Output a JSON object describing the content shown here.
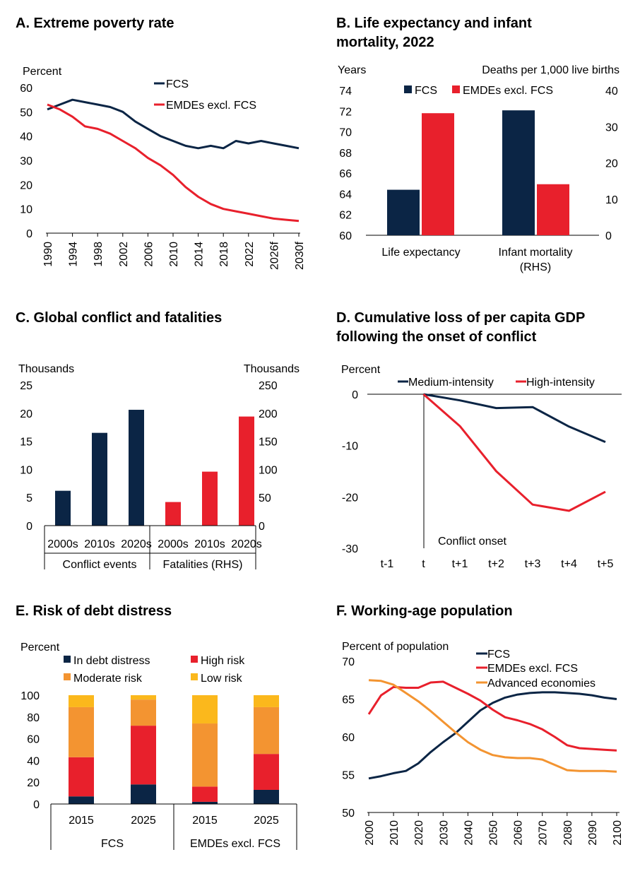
{
  "colors": {
    "navy": "#0b2545",
    "red": "#e8202c",
    "orange": "#f39431",
    "yellow": "#fbb81c",
    "axis": "#000000"
  },
  "panels": {
    "A": {
      "title": "A. Extreme poverty rate",
      "unit_label": "Percent",
      "chart_data": {
        "type": "line",
        "x": [
          1990,
          1992,
          1994,
          1996,
          1998,
          2000,
          2002,
          2004,
          2006,
          2008,
          2010,
          2012,
          2014,
          2016,
          2018,
          2020,
          2022,
          2024,
          2026,
          2028,
          2030
        ],
        "x_tick_labels": [
          "1990",
          "1994",
          "1998",
          "2002",
          "2006",
          "2010",
          "2014",
          "2018",
          "2022",
          "2026f",
          "2030f"
        ],
        "ylim": [
          0,
          60
        ],
        "y_ticks": [
          "0",
          "10",
          "20",
          "30",
          "40",
          "50",
          "60"
        ],
        "series": [
          {
            "name": "FCS",
            "color": "#0b2545",
            "values": [
              51,
              53,
              55,
              54,
              53,
              52,
              50,
              46,
              43,
              40,
              38,
              36,
              35,
              36,
              35,
              38,
              37,
              38,
              37,
              36,
              35
            ]
          },
          {
            "name": "EMDEs excl. FCS",
            "color": "#e8202c",
            "values": [
              53,
              51,
              48,
              44,
              43,
              41,
              38,
              35,
              31,
              28,
              24,
              19,
              15,
              12,
              10,
              9,
              8,
              7,
              6,
              5.5,
              5
            ]
          }
        ]
      }
    },
    "B": {
      "title_lines": [
        "B. Life expectancy and infant",
        "mortality, 2022"
      ],
      "left_unit": "Years",
      "right_unit": "Deaths per 1,000 live births",
      "chart_data": {
        "type": "bar",
        "categories": [
          [
            "Life expectancy"
          ],
          [
            "Infant mortality",
            "(RHS)"
          ]
        ],
        "ylim_left": [
          60,
          74
        ],
        "ylim_right": [
          0,
          40
        ],
        "y_ticks_left": [
          "60",
          "62",
          "64",
          "66",
          "68",
          "70",
          "72",
          "74"
        ],
        "y_ticks_right": [
          "0",
          "10",
          "20",
          "30",
          "40"
        ],
        "series": [
          {
            "name": "FCS",
            "color": "#0b2545",
            "values": [
              64.4,
              34.5
            ]
          },
          {
            "name": "EMDEs excl. FCS",
            "color": "#e8202c",
            "values": [
              71.8,
              14.1
            ]
          }
        ],
        "axis_for_category": [
          "left",
          "right"
        ]
      }
    },
    "C": {
      "title": "C. Global conflict and fatalities",
      "left_unit": "Thousands",
      "right_unit": "Thousands",
      "chart_data": {
        "type": "bar",
        "ylim_left": [
          0,
          25
        ],
        "ylim_right": [
          0,
          250
        ],
        "y_ticks_left": [
          "0",
          "5",
          "10",
          "15",
          "20",
          "25"
        ],
        "y_ticks_right": [
          "0",
          "50",
          "100",
          "150",
          "200",
          "250"
        ],
        "groups": [
          {
            "label": "Conflict events",
            "axis": "left",
            "color": "#0b2545",
            "categories": [
              "2000s",
              "2010s",
              "2020s"
            ],
            "values": [
              6.2,
              16.5,
              20.6
            ]
          },
          {
            "label": "Fatalities (RHS)",
            "axis": "right",
            "color": "#e8202c",
            "categories": [
              "2000s",
              "2010s",
              "2020s"
            ],
            "values": [
              42,
              96,
              194
            ]
          }
        ]
      }
    },
    "D": {
      "title_lines": [
        "D. Cumulative loss of per capita GDP",
        "following the onset of conflict"
      ],
      "unit_label": "Percent",
      "annotation": "Conflict onset",
      "chart_data": {
        "type": "line",
        "x": [
          "t-1",
          "t",
          "t+1",
          "t+2",
          "t+3",
          "t+4",
          "t+5"
        ],
        "ylim": [
          -30,
          0
        ],
        "y_ticks": [
          "0",
          "-10",
          "-20",
          "-30"
        ],
        "series": [
          {
            "name": "Medium-intensity",
            "color": "#0b2545",
            "values": [
              null,
              0,
              -1.2,
              -2.7,
              -2.5,
              -6.3,
              -9.3
            ]
          },
          {
            "name": "High-intensity",
            "color": "#e8202c",
            "values": [
              null,
              0,
              -6.2,
              -15,
              -21.5,
              -22.7,
              -19
            ]
          }
        ]
      }
    },
    "E": {
      "title": "E. Risk of debt distress",
      "unit_label": "Percent",
      "chart_data": {
        "type": "bar",
        "stacked": true,
        "categories": [
          "2015",
          "2025",
          "2015",
          "2025"
        ],
        "groups": [
          {
            "label": "FCS",
            "span": 2
          },
          {
            "label": "EMDEs excl. FCS",
            "span": 2
          }
        ],
        "ylim": [
          0,
          100
        ],
        "y_ticks": [
          "0",
          "20",
          "40",
          "60",
          "80",
          "100"
        ],
        "series": [
          {
            "name": "In debt distress",
            "color": "#0b2545",
            "values": [
              7,
              18,
              2,
              13
            ]
          },
          {
            "name": "High risk",
            "color": "#e8202c",
            "values": [
              36,
              54,
              14,
              33
            ]
          },
          {
            "name": "Moderate risk",
            "color": "#f39431",
            "values": [
              46,
              24,
              58,
              43
            ]
          },
          {
            "name": "Low risk",
            "color": "#fbb81c",
            "values": [
              11,
              4,
              26,
              11
            ]
          }
        ]
      }
    },
    "F": {
      "title": "F. Working-age population",
      "unit_label": "Percent of population",
      "chart_data": {
        "type": "line",
        "x": [
          2000,
          2005,
          2010,
          2015,
          2020,
          2025,
          2030,
          2035,
          2040,
          2045,
          2050,
          2055,
          2060,
          2065,
          2070,
          2075,
          2080,
          2085,
          2090,
          2095,
          2100
        ],
        "x_tick_labels": [
          "2000",
          "2010",
          "2020",
          "2030",
          "2040",
          "2050",
          "2060",
          "2070",
          "2080",
          "2090",
          "2100"
        ],
        "ylim": [
          50,
          70
        ],
        "y_ticks": [
          "50",
          "55",
          "60",
          "65",
          "70"
        ],
        "series": [
          {
            "name": "FCS",
            "color": "#0b2545",
            "values": [
              54.5,
              54.8,
              55.2,
              55.5,
              56.5,
              58,
              59.3,
              60.5,
              62,
              63.5,
              64.5,
              65.2,
              65.6,
              65.8,
              65.9,
              65.9,
              65.8,
              65.7,
              65.5,
              65.2,
              65.0
            ]
          },
          {
            "name": "EMDEs excl. FCS",
            "color": "#e8202c",
            "values": [
              63,
              65.5,
              66.6,
              66.5,
              66.5,
              67.2,
              67.3,
              66.5,
              65.7,
              64.8,
              63.6,
              62.6,
              62.2,
              61.7,
              61,
              60,
              58.9,
              58.5,
              58.4,
              58.3,
              58.2
            ]
          },
          {
            "name": "Advanced economies",
            "color": "#f39431",
            "values": [
              67.5,
              67.4,
              66.9,
              65.8,
              64.7,
              63.4,
              62,
              60.6,
              59.3,
              58.3,
              57.6,
              57.3,
              57.2,
              57.2,
              57,
              56.3,
              55.6,
              55.5,
              55.5,
              55.5,
              55.4
            ]
          }
        ]
      }
    }
  }
}
